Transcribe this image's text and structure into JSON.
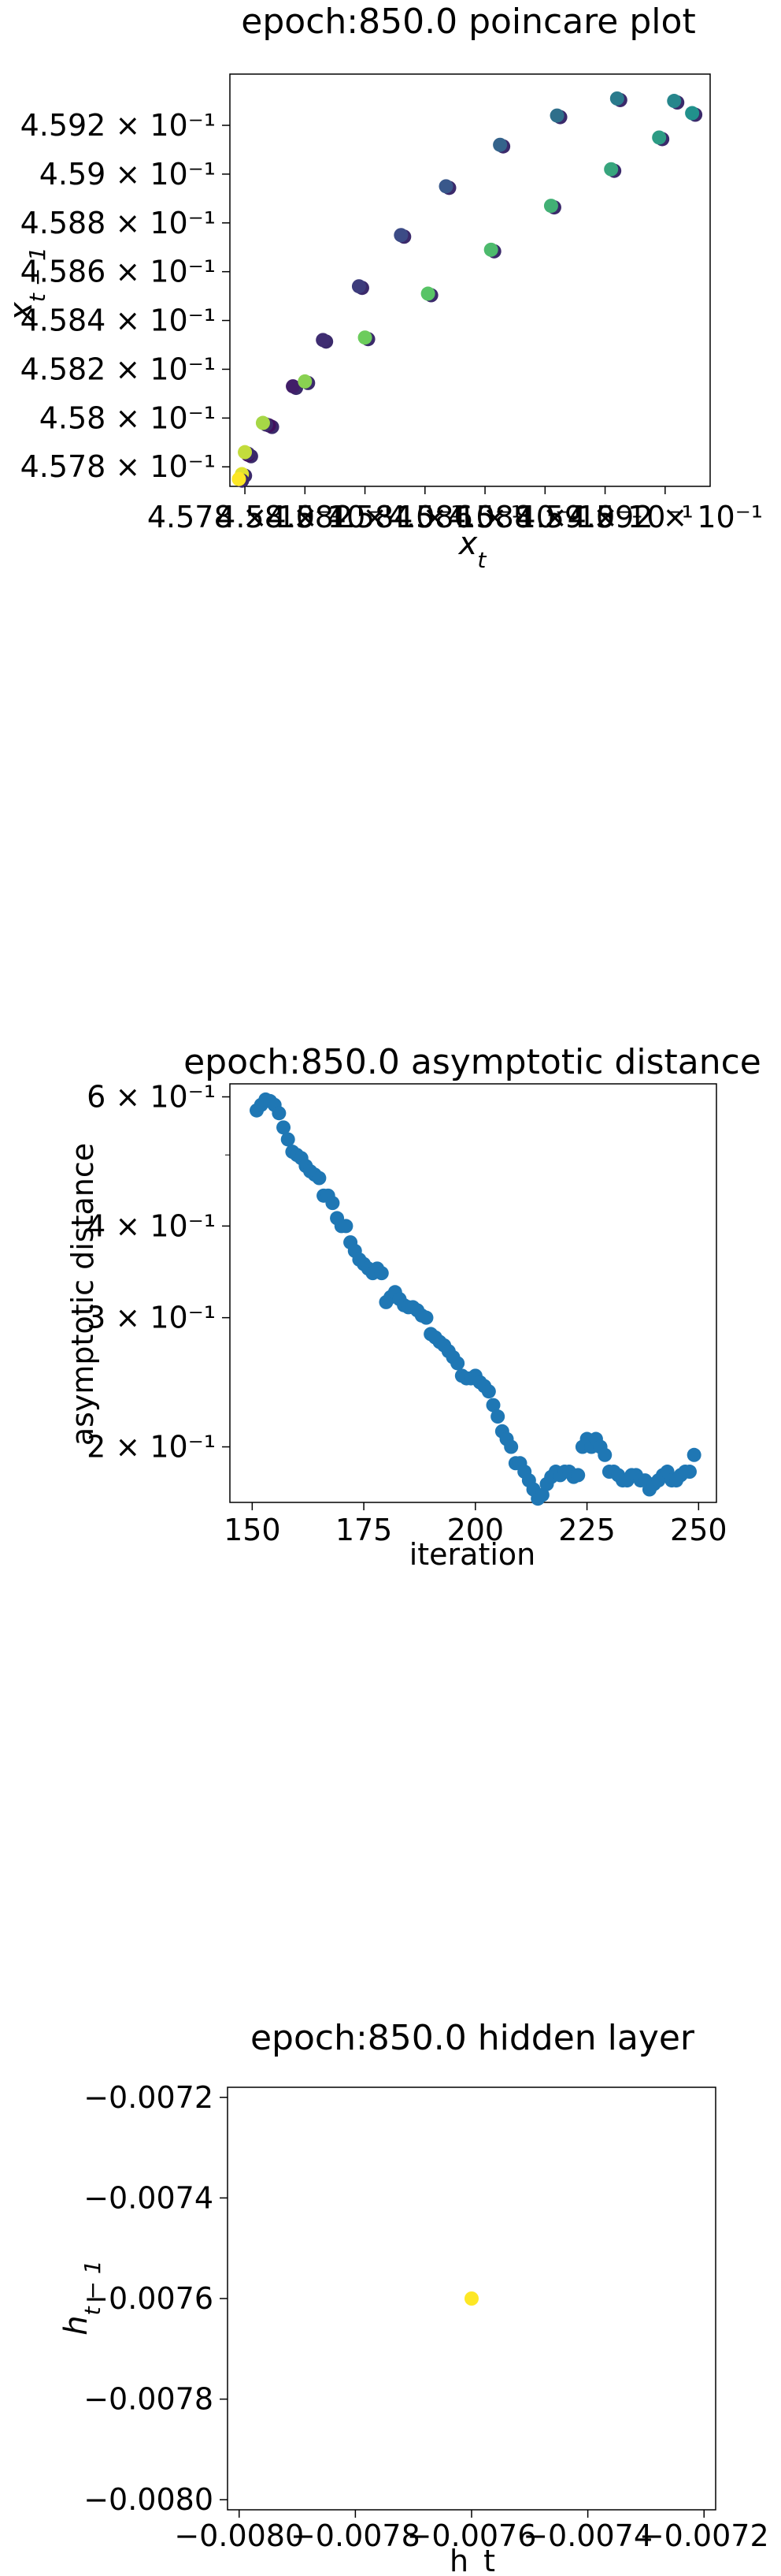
{
  "chart_data": [
    {
      "type": "scatter",
      "title": "epoch:850.0 poincare plot",
      "xlabel": "x_t",
      "ylabel": "x_{t-1}",
      "xlim": [
        0.45775,
        0.45935
      ],
      "ylim": [
        0.45772,
        0.45941
      ],
      "grid": false,
      "colormap": [
        "#440154",
        "#3b528b",
        "#21918c",
        "#5ec962",
        "#fde725"
      ],
      "x_ticks": [
        "4.578 × 10⁻¹",
        "4.58 × 10⁻¹",
        "4.582 × 10⁻¹",
        "4.584 × 10⁻¹",
        "4.586 × 10⁻¹",
        "4.588 × 10⁻¹",
        "4.59 × 10⁻¹",
        "4.592 × 10⁻¹"
      ],
      "y_ticks": [
        "4.578 × 10⁻¹",
        "4.58 × 10⁻¹",
        "4.582 × 10⁻¹",
        "4.584 × 10⁻¹",
        "4.586 × 10⁻¹",
        "4.588 × 10⁻¹",
        "4.59 × 10⁻¹",
        "4.592 × 10⁻¹"
      ],
      "points": [
        {
          "x": 0.45781,
          "y": 0.45785
        },
        {
          "x": 0.45788,
          "y": 0.45797
        },
        {
          "x": 0.45796,
          "y": 0.45813
        },
        {
          "x": 0.45806,
          "y": 0.45832
        },
        {
          "x": 0.45818,
          "y": 0.45854
        },
        {
          "x": 0.45832,
          "y": 0.45875
        },
        {
          "x": 0.45847,
          "y": 0.45895
        },
        {
          "x": 0.45865,
          "y": 0.45912
        },
        {
          "x": 0.45884,
          "y": 0.45924
        },
        {
          "x": 0.45904,
          "y": 0.45931
        },
        {
          "x": 0.45923,
          "y": 0.4593
        },
        {
          "x": 0.45929,
          "y": 0.45925
        },
        {
          "x": 0.45918,
          "y": 0.45915
        },
        {
          "x": 0.45902,
          "y": 0.45902
        },
        {
          "x": 0.45882,
          "y": 0.45887
        },
        {
          "x": 0.45862,
          "y": 0.45869
        },
        {
          "x": 0.45841,
          "y": 0.45851
        },
        {
          "x": 0.4582,
          "y": 0.45833
        },
        {
          "x": 0.458,
          "y": 0.45815
        },
        {
          "x": 0.45786,
          "y": 0.45798
        },
        {
          "x": 0.4578,
          "y": 0.45786
        },
        {
          "x": 0.45779,
          "y": 0.45777
        },
        {
          "x": 0.45778,
          "y": 0.45775
        }
      ]
    },
    {
      "type": "scatter",
      "title": "epoch:850.0 asymptotic distance",
      "xlabel": "iteration",
      "ylabel": "asymptotic distance",
      "xlim": [
        145,
        254
      ],
      "ylim": [
        0.168,
        0.625
      ],
      "yscale": "log",
      "grid": false,
      "color": "#1f77b4",
      "x_ticks": [
        150,
        175,
        200,
        225,
        250
      ],
      "y_ticks": [
        {
          "value": 0.2,
          "label": "2 × 10⁻¹"
        },
        {
          "value": 0.3,
          "label": "3 × 10⁻¹"
        },
        {
          "value": 0.4,
          "label": "4 × 10⁻¹"
        },
        {
          "value": 0.6,
          "label": "6 × 10⁻¹"
        }
      ],
      "x": [
        151,
        152,
        153,
        154,
        155,
        156,
        157,
        158,
        159,
        160,
        161,
        162,
        163,
        164,
        165,
        166,
        167,
        168,
        169,
        170,
        171,
        172,
        173,
        174,
        175,
        176,
        177,
        178,
        179,
        180,
        181,
        182,
        183,
        184,
        185,
        186,
        187,
        188,
        189,
        190,
        191,
        192,
        193,
        194,
        195,
        196,
        197,
        198,
        199,
        200,
        201,
        202,
        203,
        204,
        205,
        206,
        207,
        208,
        209,
        210,
        211,
        212,
        213,
        214,
        215,
        216,
        217,
        218,
        219,
        220,
        221,
        222,
        223,
        224,
        225,
        226,
        227,
        228,
        229,
        230,
        231,
        232,
        233,
        234,
        235,
        236,
        237,
        238,
        239,
        240,
        241,
        242,
        243,
        244,
        245,
        246,
        247,
        248,
        249
      ],
      "y": [
        0.575,
        0.585,
        0.595,
        0.592,
        0.585,
        0.57,
        0.545,
        0.525,
        0.505,
        0.5,
        0.495,
        0.483,
        0.475,
        0.47,
        0.465,
        0.44,
        0.44,
        0.43,
        0.41,
        0.4,
        0.4,
        0.38,
        0.37,
        0.36,
        0.355,
        0.35,
        0.345,
        0.35,
        0.345,
        0.315,
        0.32,
        0.325,
        0.318,
        0.312,
        0.31,
        0.31,
        0.307,
        0.302,
        0.3,
        0.285,
        0.282,
        0.278,
        0.275,
        0.27,
        0.265,
        0.26,
        0.25,
        0.248,
        0.248,
        0.25,
        0.245,
        0.242,
        0.238,
        0.228,
        0.22,
        0.21,
        0.205,
        0.2,
        0.19,
        0.19,
        0.185,
        0.18,
        0.175,
        0.17,
        0.172,
        0.178,
        0.182,
        0.185,
        0.183,
        0.185,
        0.185,
        0.182,
        0.183,
        0.2,
        0.205,
        0.2,
        0.205,
        0.2,
        0.195,
        0.185,
        0.185,
        0.183,
        0.18,
        0.18,
        0.183,
        0.183,
        0.18,
        0.18,
        0.175,
        0.178,
        0.18,
        0.183,
        0.185,
        0.18,
        0.18,
        0.183,
        0.185,
        0.185,
        0.195
      ]
    },
    {
      "type": "scatter",
      "title": "epoch:850.0 hidden layer",
      "xlabel": "h_t",
      "ylabel": "h_{t-1}",
      "xlim": [
        -0.00802,
        -0.00718
      ],
      "ylim": [
        -0.00802,
        -0.00718
      ],
      "grid": false,
      "x_ticks": [
        -0.008,
        -0.0078,
        -0.0076,
        -0.0074,
        -0.0072
      ],
      "y_ticks": [
        -0.008,
        -0.0078,
        -0.0076,
        -0.0074,
        -0.0072
      ],
      "x_tick_labels": [
        "−0.0080",
        "−0.0078",
        "−0.0076",
        "−0.0074",
        "−0.0072"
      ],
      "y_tick_labels": [
        "−0.0080",
        "−0.0078",
        "−0.0076",
        "−0.0074",
        "−0.0072"
      ],
      "points": [
        {
          "x": -0.0076,
          "y": -0.0076
        }
      ],
      "color": "#fde725"
    }
  ]
}
